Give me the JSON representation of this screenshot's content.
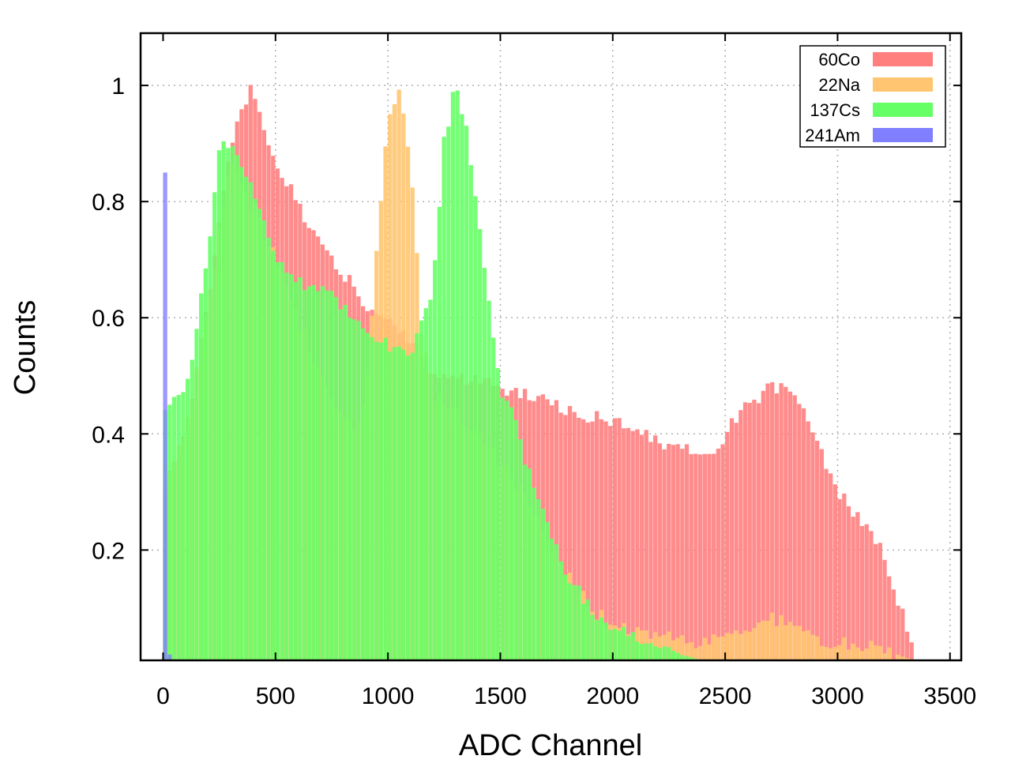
{
  "chart_data": {
    "type": "bar",
    "subtype": "overlaid-histogram",
    "title": "",
    "xlabel": "ADC Channel",
    "ylabel": "Counts",
    "xlim": [
      -100,
      3550
    ],
    "ylim": [
      0.01,
      1.09
    ],
    "grid": true,
    "legend_position": "top-right",
    "x_ticks": [
      {
        "value": 0,
        "label": "0"
      },
      {
        "value": 500,
        "label": "500"
      },
      {
        "value": 1000,
        "label": "1000"
      },
      {
        "value": 1500,
        "label": "1500"
      },
      {
        "value": 2000,
        "label": "2000"
      },
      {
        "value": 2500,
        "label": "2500"
      },
      {
        "value": 3000,
        "label": "3000"
      },
      {
        "value": 3500,
        "label": "3500"
      }
    ],
    "y_ticks": [
      {
        "value": 0.2,
        "label": "0.2"
      },
      {
        "value": 0.4,
        "label": "0.4"
      },
      {
        "value": 0.6,
        "label": "0.6"
      },
      {
        "value": 0.8,
        "label": "0.8"
      },
      {
        "value": 1.0,
        "label": "1"
      }
    ],
    "bin_width": 20,
    "series": [
      {
        "name": "60Co",
        "color": "#ff7f7f",
        "points": [
          [
            0,
            0.3
          ],
          [
            100,
            0.4
          ],
          [
            200,
            0.62
          ],
          [
            300,
            0.9
          ],
          [
            400,
            1.0
          ],
          [
            500,
            0.86
          ],
          [
            600,
            0.8
          ],
          [
            700,
            0.72
          ],
          [
            800,
            0.68
          ],
          [
            900,
            0.62
          ],
          [
            1000,
            0.59
          ],
          [
            1100,
            0.56
          ],
          [
            1200,
            0.51
          ],
          [
            1300,
            0.5
          ],
          [
            1400,
            0.49
          ],
          [
            1500,
            0.48
          ],
          [
            1600,
            0.47
          ],
          [
            1700,
            0.455
          ],
          [
            1800,
            0.44
          ],
          [
            1900,
            0.43
          ],
          [
            2000,
            0.42
          ],
          [
            2100,
            0.41
          ],
          [
            2200,
            0.39
          ],
          [
            2300,
            0.375
          ],
          [
            2400,
            0.365
          ],
          [
            2450,
            0.37
          ],
          [
            2500,
            0.4
          ],
          [
            2600,
            0.45
          ],
          [
            2700,
            0.48
          ],
          [
            2800,
            0.47
          ],
          [
            2900,
            0.4
          ],
          [
            3000,
            0.3
          ],
          [
            3100,
            0.25
          ],
          [
            3200,
            0.2
          ],
          [
            3300,
            0.08
          ],
          [
            3350,
            0.01
          ]
        ]
      },
      {
        "name": "22Na",
        "color": "#ffc570",
        "points": [
          [
            0,
            0.3
          ],
          [
            100,
            0.4
          ],
          [
            200,
            0.62
          ],
          [
            300,
            0.87
          ],
          [
            400,
            0.79
          ],
          [
            500,
            0.7
          ],
          [
            600,
            0.6
          ],
          [
            700,
            0.5
          ],
          [
            800,
            0.43
          ],
          [
            850,
            0.41
          ],
          [
            900,
            0.46
          ],
          [
            950,
            0.72
          ],
          [
            1000,
            0.93
          ],
          [
            1050,
            1.0
          ],
          [
            1100,
            0.88
          ],
          [
            1150,
            0.58
          ],
          [
            1200,
            0.47
          ],
          [
            1300,
            0.44
          ],
          [
            1400,
            0.4
          ],
          [
            1500,
            0.35
          ],
          [
            1600,
            0.3
          ],
          [
            1700,
            0.23
          ],
          [
            1800,
            0.16
          ],
          [
            1900,
            0.1
          ],
          [
            2000,
            0.07
          ],
          [
            2100,
            0.06
          ],
          [
            2200,
            0.05
          ],
          [
            2300,
            0.045
          ],
          [
            2400,
            0.04
          ],
          [
            2500,
            0.045
          ],
          [
            2600,
            0.065
          ],
          [
            2700,
            0.085
          ],
          [
            2800,
            0.07
          ],
          [
            2900,
            0.05
          ],
          [
            3000,
            0.04
          ],
          [
            3100,
            0.035
          ],
          [
            3200,
            0.03
          ],
          [
            3300,
            0.015
          ],
          [
            3350,
            0.01
          ]
        ]
      },
      {
        "name": "137Cs",
        "color": "#66ff66",
        "points": [
          [
            0,
            0.45
          ],
          [
            100,
            0.47
          ],
          [
            200,
            0.7
          ],
          [
            250,
            0.88
          ],
          [
            300,
            0.91
          ],
          [
            400,
            0.82
          ],
          [
            500,
            0.7
          ],
          [
            600,
            0.66
          ],
          [
            700,
            0.65
          ],
          [
            800,
            0.62
          ],
          [
            900,
            0.59
          ],
          [
            1000,
            0.55
          ],
          [
            1100,
            0.54
          ],
          [
            1200,
            0.64
          ],
          [
            1250,
            0.9
          ],
          [
            1300,
            1.0
          ],
          [
            1350,
            0.93
          ],
          [
            1400,
            0.78
          ],
          [
            1450,
            0.64
          ],
          [
            1500,
            0.48
          ],
          [
            1550,
            0.45
          ],
          [
            1600,
            0.37
          ],
          [
            1700,
            0.25
          ],
          [
            1800,
            0.16
          ],
          [
            1900,
            0.1
          ],
          [
            2000,
            0.07
          ],
          [
            2100,
            0.05
          ],
          [
            2200,
            0.03
          ],
          [
            2300,
            0.02
          ],
          [
            2400,
            0.01
          ]
        ]
      },
      {
        "name": "241Am",
        "color": "#7f7fff",
        "points": [
          [
            0,
            0.85
          ],
          [
            10,
            0.85
          ],
          [
            20,
            0.05
          ],
          [
            30,
            0.02
          ],
          [
            40,
            0.01
          ]
        ]
      }
    ]
  }
}
